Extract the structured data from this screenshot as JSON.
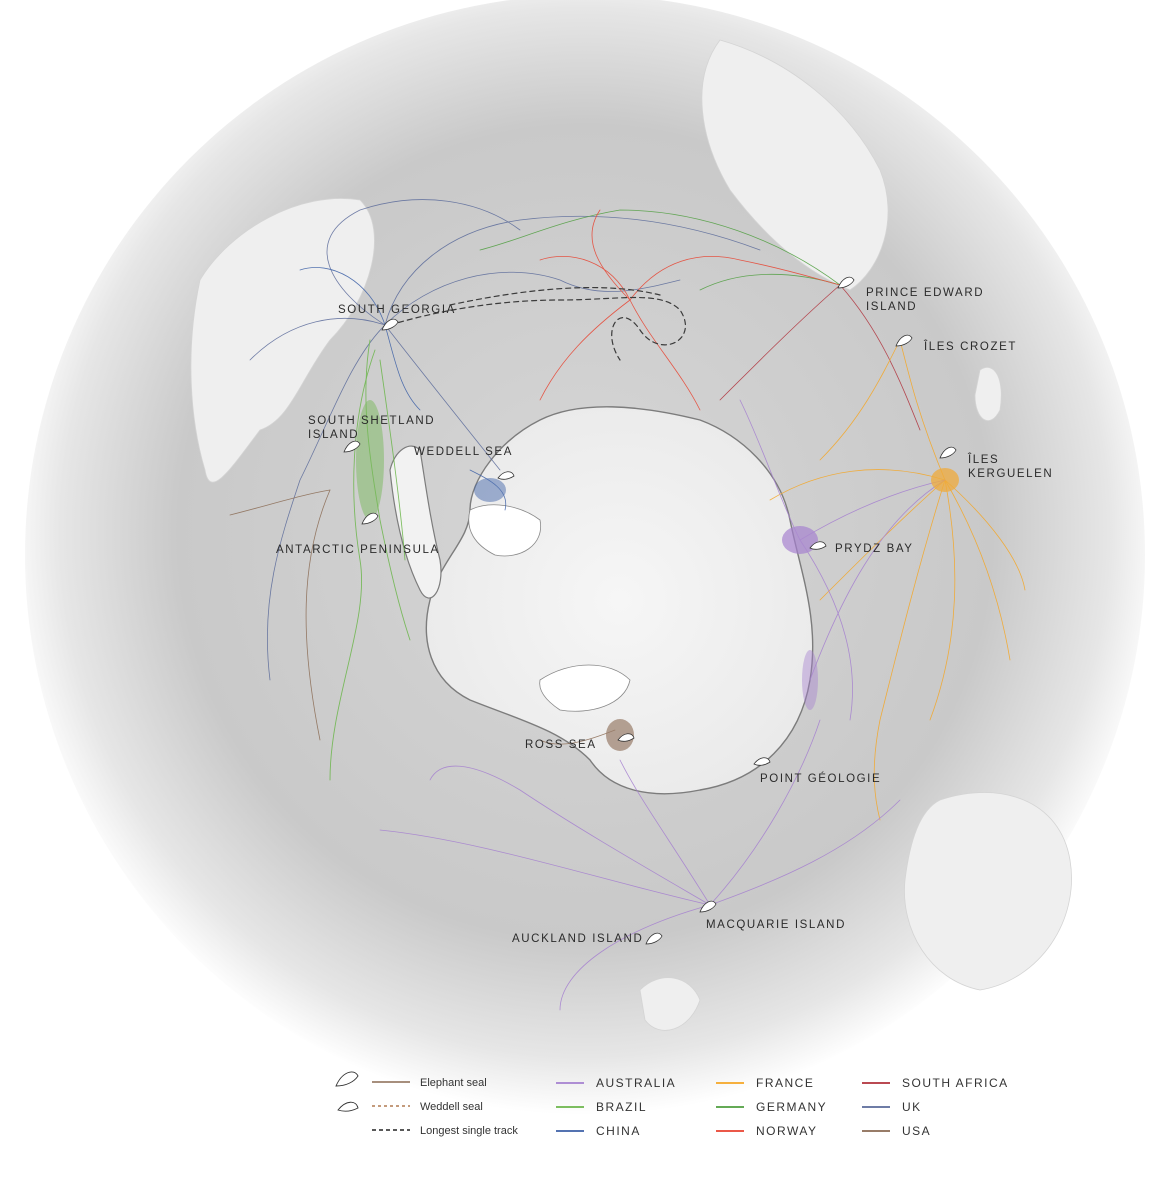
{
  "locations": [
    {
      "key": "south-georgia",
      "lines": [
        "SOUTH GEORGIA"
      ]
    },
    {
      "key": "prince-edward",
      "lines": [
        "PRINCE EDWARD",
        "ISLAND"
      ]
    },
    {
      "key": "iles-crozet",
      "lines": [
        "ÎLES CROZET"
      ]
    },
    {
      "key": "south-shetland",
      "lines": [
        "SOUTH SHETLAND",
        "ISLAND"
      ]
    },
    {
      "key": "weddell-sea",
      "lines": [
        "WEDDELL SEA"
      ]
    },
    {
      "key": "iles-kerguelen",
      "lines": [
        "ÎLES",
        "KERGUELEN"
      ]
    },
    {
      "key": "antarctic-peninsula",
      "lines": [
        "ANTARCTIC PENINSULA"
      ]
    },
    {
      "key": "prydz-bay",
      "lines": [
        "PRYDZ BAY"
      ]
    },
    {
      "key": "ross-sea",
      "lines": [
        "ROSS SEA"
      ]
    },
    {
      "key": "point-geologie",
      "lines": [
        "POINT GÉOLOGIE"
      ]
    },
    {
      "key": "macquarie",
      "lines": [
        "MACQUARIE ISLAND"
      ]
    },
    {
      "key": "auckland",
      "lines": [
        "AUCKLAND ISLAND"
      ]
    }
  ],
  "legend": {
    "species": [
      {
        "label": "Elephant seal",
        "style": "solid",
        "color": "#8a6a52",
        "icon": "elephant-seal-icon"
      },
      {
        "label": "Weddell seal",
        "style": "dashed",
        "color": "#b07a50",
        "icon": "weddell-seal-icon"
      },
      {
        "label": "Longest single track",
        "style": "dashed",
        "color": "#222222"
      }
    ],
    "countries": [
      {
        "label": "AUSTRALIA",
        "color": "#a57fd0"
      },
      {
        "label": "BRAZIL",
        "color": "#6bb64a"
      },
      {
        "label": "CHINA",
        "color": "#3b5fa6"
      },
      {
        "label": "FRANCE",
        "color": "#f5a623"
      },
      {
        "label": "GERMANY",
        "color": "#4e9e3e"
      },
      {
        "label": "NORWAY",
        "color": "#e8412e"
      },
      {
        "label": "SOUTH AFRICA",
        "color": "#b0303a"
      },
      {
        "label": "UK",
        "color": "#5a6a9a"
      },
      {
        "label": "USA",
        "color": "#8a6a52"
      }
    ]
  }
}
